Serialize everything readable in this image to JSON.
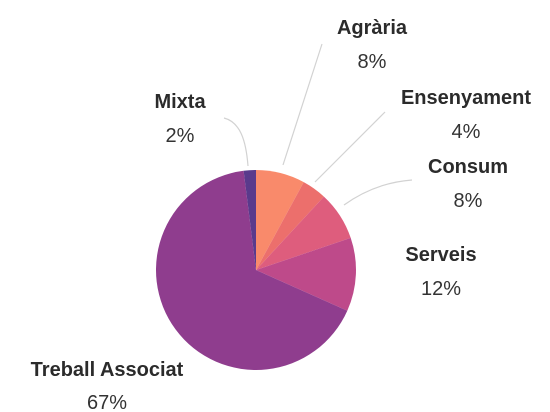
{
  "chart_data": {
    "type": "pie",
    "title": "",
    "start_angle_deg": 0,
    "direction": "clockwise",
    "slices": [
      {
        "label": "Agrària",
        "percent_label": "8%",
        "value": 8,
        "color": "#f98a6b"
      },
      {
        "label": "Ensenyament",
        "percent_label": "4%",
        "value": 4,
        "color": "#ec6f6c"
      },
      {
        "label": "Consum",
        "percent_label": "8%",
        "value": 8,
        "color": "#de5d7d"
      },
      {
        "label": "Serveis",
        "percent_label": "12%",
        "value": 12,
        "color": "#be4a8a"
      },
      {
        "label": "Treball Associat",
        "percent_label": "67%",
        "value": 67,
        "color": "#8f3d8e"
      },
      {
        "label": "Mixta",
        "percent_label": "2%",
        "value": 2,
        "color": "#5a3a8c"
      }
    ]
  }
}
